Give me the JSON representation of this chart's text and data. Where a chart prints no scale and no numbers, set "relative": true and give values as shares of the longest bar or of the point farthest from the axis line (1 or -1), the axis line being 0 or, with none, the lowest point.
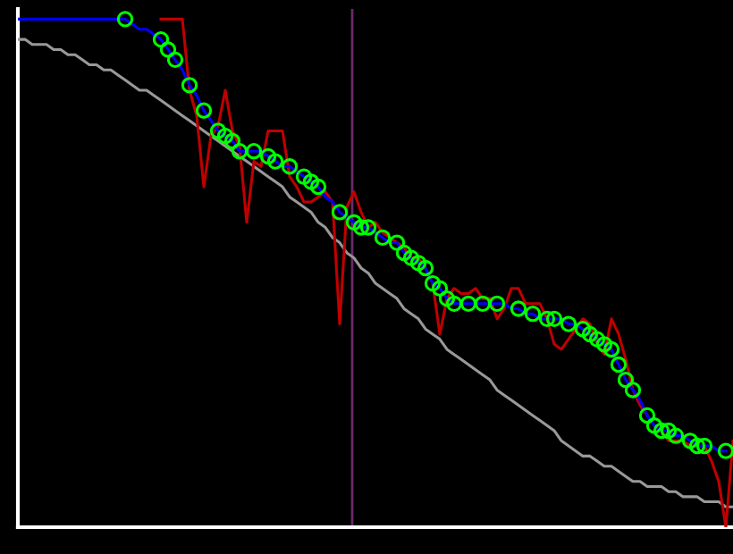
{
  "chart_data": {
    "type": "line",
    "relative": true,
    "categories": [
      null,
      null,
      null,
      null,
      null,
      null,
      null,
      null,
      null,
      null,
      null,
      null,
      null,
      null,
      null,
      null,
      null,
      null,
      null,
      null,
      null,
      null,
      null,
      null,
      null,
      null,
      null,
      null,
      null,
      null,
      null,
      null,
      null,
      null,
      null,
      null,
      null,
      null,
      null,
      null,
      null,
      null,
      null,
      null,
      null,
      null,
      null,
      null,
      null,
      null,
      null,
      null,
      null,
      null,
      null,
      null,
      null,
      null,
      null,
      null,
      null,
      null,
      null,
      null,
      null,
      null,
      null,
      null,
      null,
      null,
      null,
      null,
      null,
      null,
      null,
      null,
      null,
      null,
      null,
      null,
      null,
      null,
      null,
      null,
      null,
      null,
      null,
      null,
      null,
      null,
      null,
      null,
      null,
      null,
      null,
      null,
      null,
      null,
      null,
      null,
      null
    ],
    "grid": false,
    "legend": false,
    "series": [
      {
        "color": "#999999",
        "marker": "none",
        "values": [
          0.96,
          0.96,
          0.95,
          0.95,
          0.95,
          0.94,
          0.94,
          0.93,
          0.93,
          0.92,
          0.91,
          0.91,
          0.9,
          0.9,
          0.89,
          0.88,
          0.87,
          0.86,
          0.86,
          0.85,
          0.84,
          0.83,
          0.82,
          0.81,
          0.8,
          0.79,
          0.78,
          0.77,
          0.76,
          0.75,
          0.74,
          0.73,
          0.72,
          0.71,
          0.7,
          0.69,
          0.68,
          0.67,
          0.65,
          0.64,
          0.63,
          0.62,
          0.6,
          0.59,
          0.57,
          0.56,
          0.54,
          0.53,
          0.51,
          0.5,
          0.48,
          0.47,
          0.46,
          0.45,
          0.43,
          0.42,
          0.41,
          0.39,
          0.38,
          0.37,
          0.35,
          0.34,
          0.33,
          0.32,
          0.31,
          0.3,
          0.29,
          0.27,
          0.26,
          0.25,
          0.24,
          0.23,
          0.22,
          0.21,
          0.2,
          0.19,
          0.17,
          0.16,
          0.15,
          0.14,
          0.14,
          0.13,
          0.12,
          0.12,
          0.11,
          0.1,
          0.09,
          0.09,
          0.08,
          0.08,
          0.08,
          0.07,
          0.07,
          0.06,
          0.06,
          0.06,
          0.05,
          0.05,
          0.05,
          0.04,
          0.04
        ]
      },
      {
        "color": "#c00000",
        "marker": "none",
        "values": [
          null,
          null,
          null,
          null,
          null,
          null,
          null,
          null,
          null,
          null,
          null,
          null,
          null,
          null,
          null,
          null,
          null,
          null,
          null,
          null,
          1,
          1,
          1,
          1,
          0.86,
          0.81,
          0.67,
          0.77,
          0.79,
          0.86,
          0.78,
          0.75,
          0.6,
          0.72,
          0.71,
          0.78,
          0.78,
          0.78,
          0.69,
          0.67,
          0.64,
          0.64,
          0.65,
          0.66,
          0.64,
          0.4,
          0.63,
          0.66,
          0.62,
          0.59,
          0.6,
          0.58,
          0.57,
          0.56,
          0.55,
          0.53,
          0.53,
          0.51,
          0.48,
          0.38,
          0.45,
          0.47,
          0.46,
          0.46,
          0.47,
          0.45,
          0.45,
          0.41,
          0.43,
          0.47,
          0.47,
          0.44,
          0.44,
          0.44,
          0.41,
          0.36,
          0.35,
          0.37,
          0.39,
          0.41,
          0.4,
          0.36,
          0.34,
          0.41,
          0.38,
          0.33,
          0.27,
          0.24,
          0.22,
          0.2,
          0.19,
          0.17,
          0.17,
          0.17,
          0.16,
          0.16,
          0.16,
          0.13,
          0.09,
          0.0,
          0.17
        ]
      },
      {
        "color": "#0000ff",
        "marker": "circle",
        "colors": [
          null,
          null,
          null,
          null,
          null,
          null,
          null,
          null,
          null,
          null,
          null,
          null,
          null,
          null,
          null,
          "#00ff00",
          null,
          null,
          null,
          null,
          "#00ff00",
          "#00ff00",
          "#00ff00",
          null,
          "#00ff00",
          null,
          "#00ff00",
          null,
          "#00ff00",
          "#00ff00",
          "#00ff00",
          "#00ff00",
          null,
          "#00ff00",
          null,
          "#00ff00",
          "#00ff00",
          null,
          "#00ff00",
          null,
          "#00ff00",
          "#00ff00",
          "#00ff00",
          null,
          null,
          "#00ff00",
          null,
          "#00ff00",
          "#00ff00",
          "#00ff00",
          null,
          "#00ff00",
          null,
          "#00ff00",
          "#00ff00",
          "#00ff00",
          "#00ff00",
          "#00ff00",
          "#00ff00",
          "#00ff00",
          "#00ff00",
          "#00ff00",
          null,
          "#00ff00",
          null,
          "#00ff00",
          null,
          "#00ff00",
          null,
          null,
          "#00ff00",
          null,
          "#00ff00",
          null,
          "#00ff00",
          "#00ff00",
          null,
          "#00ff00",
          null,
          "#00ff00",
          "#00ff00",
          "#00ff00",
          "#00ff00",
          "#00ff00",
          "#00ff00",
          "#00ff00",
          "#00ff00",
          null,
          "#00ff00",
          "#00ff00",
          "#00ff00",
          "#00ff00",
          "#00ff00",
          null,
          "#00ff00",
          "#00ff00",
          "#00ff00",
          null,
          null,
          "#00ff00",
          null
        ],
        "values": [
          1,
          1,
          1,
          1,
          1,
          1,
          1,
          1,
          1,
          1,
          1,
          1,
          1,
          1,
          1,
          1,
          0.99,
          0.98,
          0.98,
          0.97,
          0.96,
          0.94,
          0.92,
          0.9,
          0.87,
          0.85,
          0.82,
          0.8,
          0.78,
          0.77,
          0.76,
          0.74,
          0.74,
          0.74,
          0.74,
          0.73,
          0.72,
          0.71,
          0.71,
          0.7,
          0.69,
          0.68,
          0.67,
          0.65,
          0.64,
          0.62,
          0.61,
          0.6,
          0.59,
          0.59,
          0.58,
          0.57,
          0.56,
          0.56,
          0.54,
          0.53,
          0.52,
          0.51,
          0.48,
          0.47,
          0.45,
          0.44,
          0.44,
          0.44,
          0.44,
          0.44,
          0.44,
          0.44,
          0.44,
          0.43,
          0.43,
          0.42,
          0.42,
          0.41,
          0.41,
          0.41,
          0.41,
          0.4,
          0.4,
          0.39,
          0.38,
          0.37,
          0.36,
          0.35,
          0.32,
          0.29,
          0.27,
          0.25,
          0.22,
          0.2,
          0.19,
          0.19,
          0.18,
          0.18,
          0.17,
          0.16,
          0.16,
          0.16,
          0.15,
          0.15,
          null
        ]
      }
    ]
  }
}
